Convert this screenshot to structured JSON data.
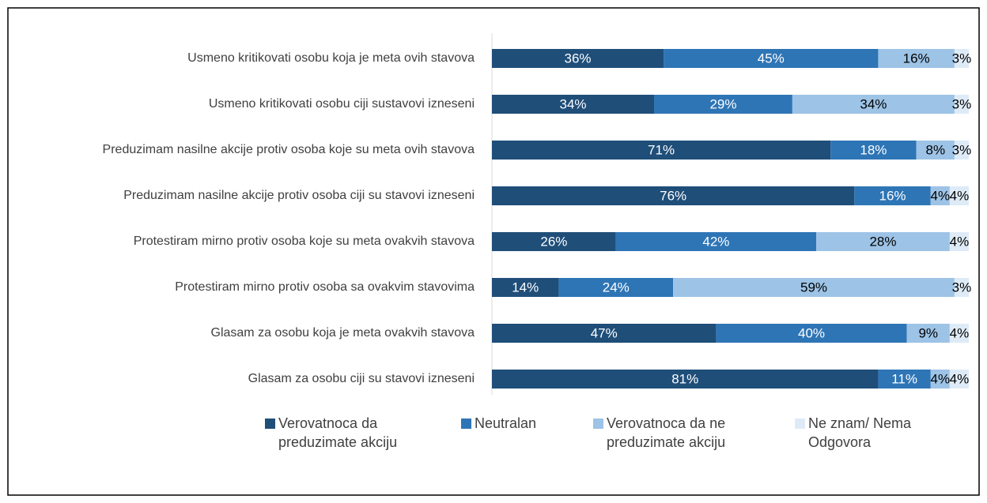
{
  "chart_data": {
    "type": "stacked_bar_horizontal",
    "categories": [
      "Usmeno kritikovati osobu koja je meta ovih stavova",
      "Usmeno kritikovati osobu ciji sustavovi izneseni",
      "Preduzimam nasilne akcije protiv osoba koje su meta ovih stavova",
      "Preduzimam nasilne akcije protiv osoba ciji su stavovi izneseni",
      "Protestiram mirno protiv osoba koje su meta ovakvih stavova",
      "Protestiram mirno protiv osoba sa ovakvim stavovima",
      "Glasam za osobu koja je meta ovakvih stavova",
      "Glasam za osobu ciji su stavovi izneseni"
    ],
    "series": [
      {
        "name": "Verovatnoca da preduzimate akciju",
        "color": "#1f4e79",
        "values": [
          36,
          34,
          71,
          76,
          26,
          14,
          47,
          81
        ],
        "value_labels": [
          "36%",
          "34%",
          "71%",
          "76%",
          "26%",
          "14%",
          "47%",
          "81%"
        ]
      },
      {
        "name": "Neutralan",
        "color": "#2e75b6",
        "values": [
          45,
          29,
          18,
          16,
          42,
          24,
          40,
          11
        ],
        "value_labels": [
          "45%",
          "29%",
          "18%",
          "16%",
          "42%",
          "24%",
          "40%",
          "11%"
        ]
      },
      {
        "name": "Verovatnoca da ne preduzimate akciju",
        "color": "#9dc3e6",
        "values": [
          16,
          34,
          8,
          4,
          28,
          59,
          9,
          4
        ],
        "value_labels": [
          "16%",
          "34%",
          "8%",
          "4%",
          "28%",
          "59%",
          "9%",
          "4%"
        ]
      },
      {
        "name": "Ne znam/ Nema Odgovora",
        "color": "#deebf7",
        "values": [
          3,
          3,
          3,
          4,
          4,
          3,
          4,
          4
        ],
        "value_labels": [
          "3%",
          "3%",
          "3%",
          "4%",
          "4%",
          "3%",
          "4%",
          "4%"
        ]
      }
    ],
    "xlim": [
      0,
      100
    ],
    "legend": "bottom"
  }
}
